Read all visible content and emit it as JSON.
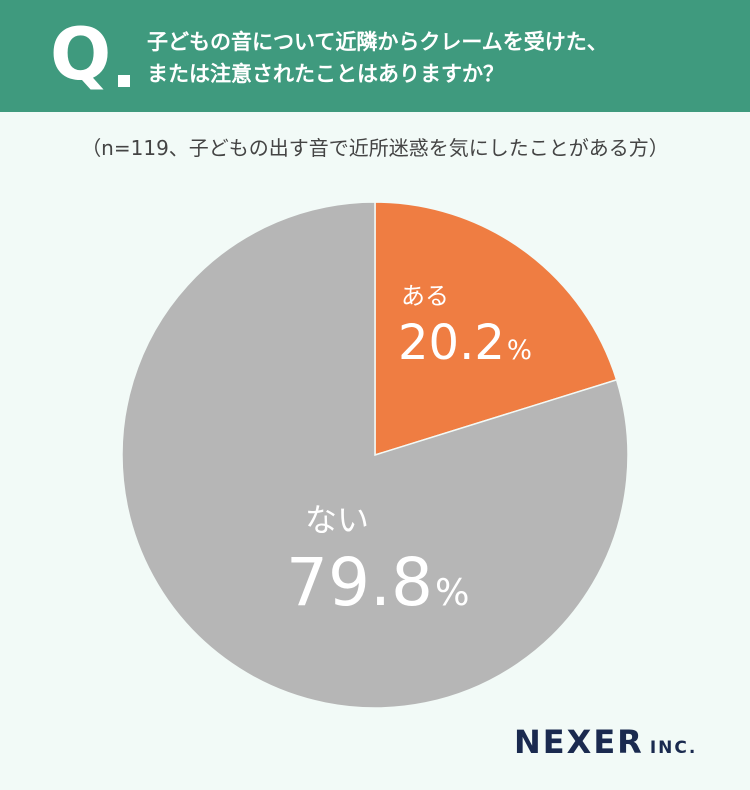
{
  "question": {
    "mark": "Q",
    "line1": "子どもの音について近隣からクレームを受けた、",
    "line2": "または注意されたことはありますか？"
  },
  "note": "（n=119、子どもの出す音で近所迷惑を気にしたことがある方）",
  "chart_data": {
    "type": "pie",
    "title": "",
    "categories": [
      "ある",
      "ない"
    ],
    "values": [
      20.2,
      79.8
    ],
    "value_labels": [
      "20.2",
      "79.8"
    ],
    "unit": "%",
    "colors": [
      "#ef7d42",
      "#b6b6b6"
    ],
    "start_angle_deg": 0,
    "direction": "clockwise",
    "legend": "none"
  },
  "logo": {
    "main": "NEXER",
    "sub": "INC."
  }
}
